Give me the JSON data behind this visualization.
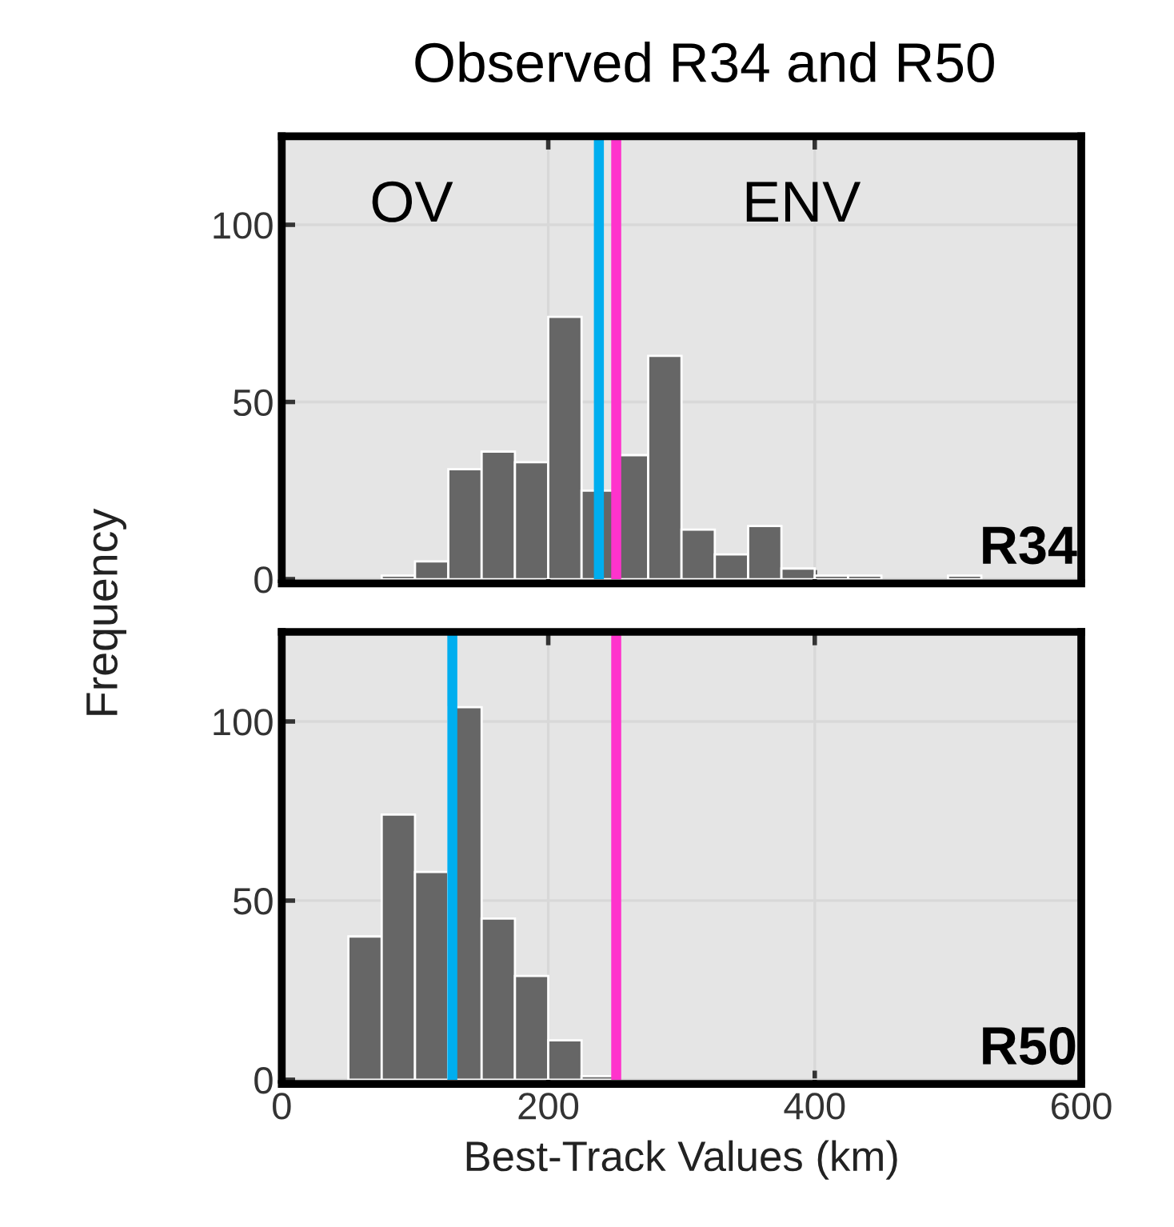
{
  "chart_data": [
    {
      "type": "histogram",
      "title": "Observed R34 and R50",
      "ylabel": "Frequency",
      "bins": [
        75,
        100,
        125,
        150,
        175,
        200,
        225,
        250,
        275,
        300,
        325,
        350,
        375,
        400,
        425,
        450,
        475,
        500,
        525
      ],
      "values": [
        1,
        5,
        31,
        36,
        33,
        74,
        25,
        35,
        63,
        14,
        7,
        15,
        3,
        1,
        1,
        0,
        0,
        1
      ],
      "color": "#666666",
      "xlim": [
        0,
        600
      ],
      "xticks": [
        0,
        200,
        400,
        600
      ],
      "ylim": [
        0,
        125
      ],
      "yticks": [
        0,
        50,
        100
      ],
      "grid": true,
      "tick_labels": "y",
      "ref_lines": [
        {
          "axis": "x",
          "value": 238,
          "color": "#00aeef"
        },
        {
          "axis": "x",
          "value": 251,
          "color": "#ff33cc"
        }
      ],
      "annotations": [
        "OV",
        "ENV",
        "R34"
      ]
    },
    {
      "type": "histogram",
      "xlabel": "Best-Track Values (km)",
      "bins": [
        50,
        75,
        100,
        125,
        150,
        175,
        200,
        225,
        250
      ],
      "values": [
        40,
        74,
        58,
        104,
        45,
        29,
        11,
        1
      ],
      "color": "#666666",
      "xlim": [
        0,
        600
      ],
      "xticks": [
        0,
        200,
        400,
        600
      ],
      "ylim": [
        0,
        125
      ],
      "yticks": [
        0,
        50,
        100
      ],
      "grid": true,
      "ref_lines": [
        {
          "axis": "x",
          "value": 128,
          "color": "#00aeef"
        },
        {
          "axis": "x",
          "value": 251,
          "color": "#ff33cc"
        }
      ],
      "annotations": [
        "R50"
      ]
    }
  ]
}
